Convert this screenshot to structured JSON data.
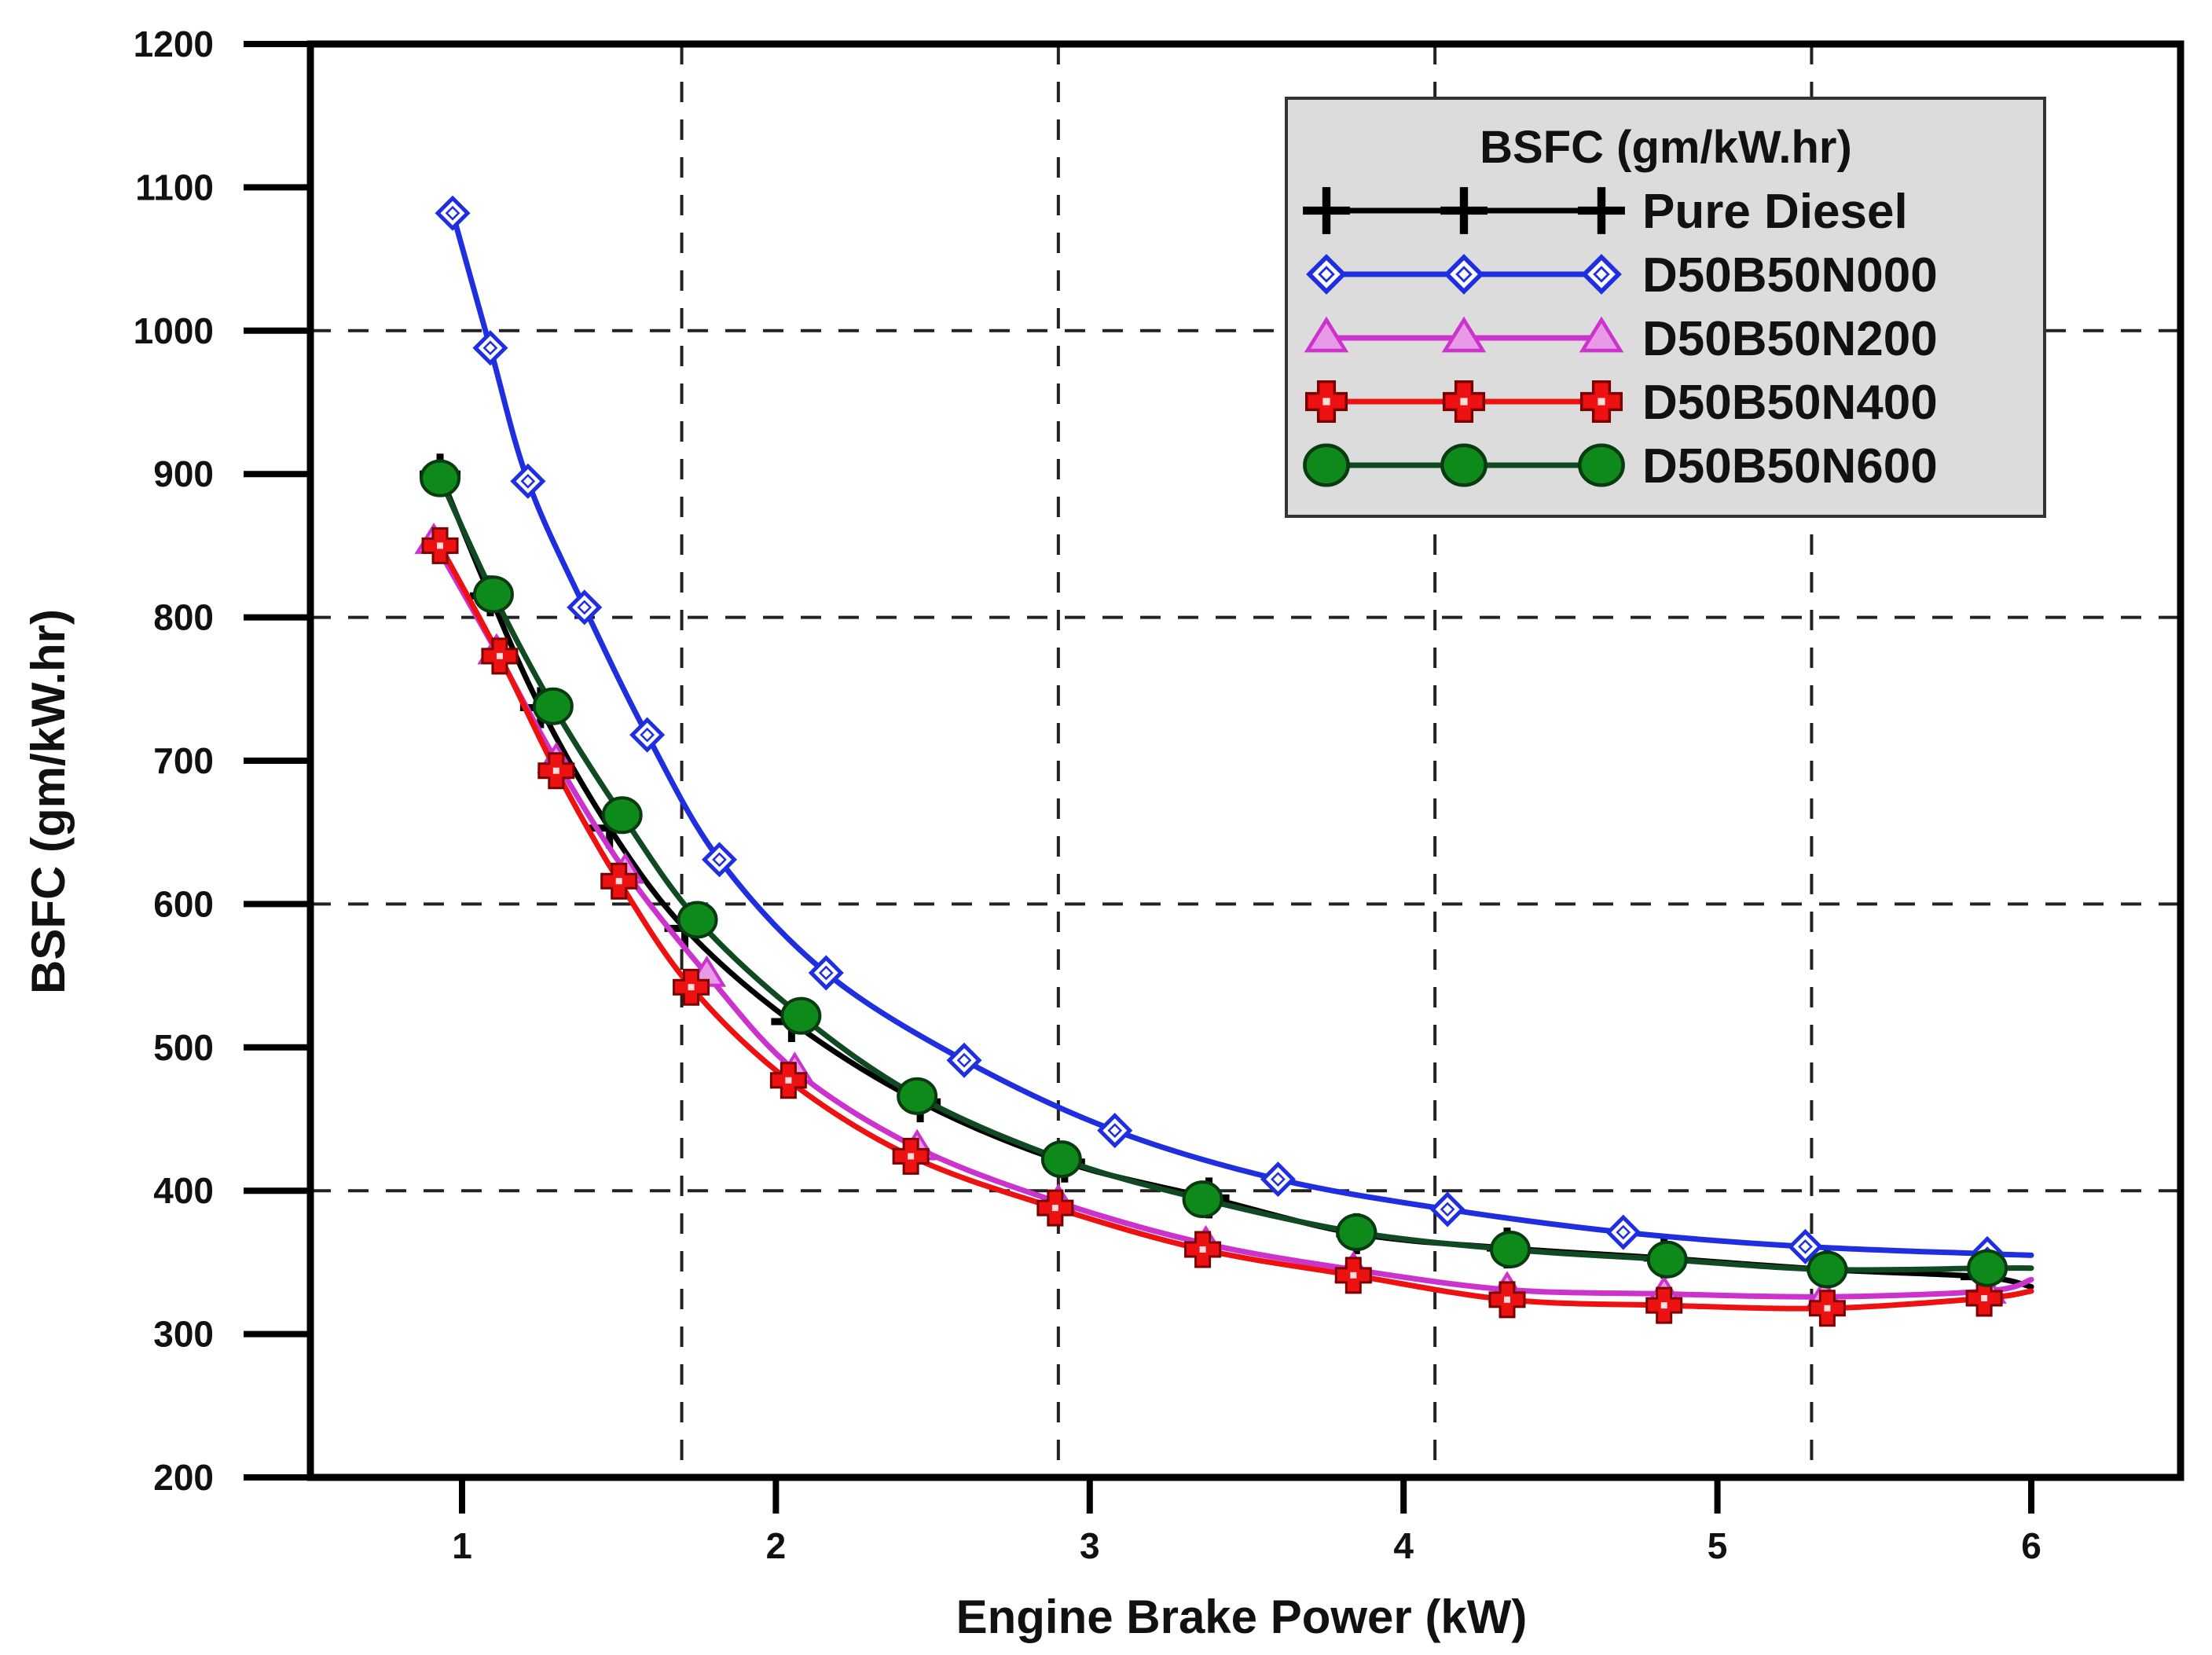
{
  "chart_data": {
    "type": "line",
    "title": "",
    "xlabel": "Engine Brake Power (kW)",
    "ylabel": "BSFC (gm/kW.hr)",
    "xlim": [
      0.5,
      6.5
    ],
    "ylim": [
      200,
      1200
    ],
    "x_ticks": [
      1,
      2,
      3,
      4,
      5,
      6
    ],
    "y_ticks": [
      200,
      300,
      400,
      500,
      600,
      700,
      800,
      900,
      1000,
      1100,
      1200
    ],
    "v_grid_x": [
      1.7,
      2.9,
      4.1,
      5.3
    ],
    "h_grid_y": [
      400,
      600,
      800,
      1000
    ],
    "grid": "dashed",
    "legend": {
      "title": "BSFC (gm/kW.hr)",
      "position": "top-right"
    },
    "series": [
      {
        "name": "Pure Diesel",
        "color": "#000000",
        "marker": "plus",
        "x": [
          0.93,
          1.09,
          1.25,
          1.47,
          1.71,
          2.05,
          2.46,
          2.92,
          3.38,
          3.85,
          4.33,
          4.83,
          5.35,
          5.84
        ],
        "y": [
          900,
          815,
          737,
          653,
          583,
          518,
          462,
          420,
          395,
          370,
          360,
          353,
          345,
          340
        ],
        "curve_end": [
          6.0,
          333
        ]
      },
      {
        "name": "D50B50N000",
        "color": "#1f2fe0",
        "marker": "diamond",
        "x": [
          0.97,
          1.09,
          1.21,
          1.39,
          1.59,
          1.82,
          2.16,
          2.6,
          3.08,
          3.6,
          4.14,
          4.7,
          5.28,
          5.86
        ],
        "y": [
          1082,
          988,
          895,
          807,
          718,
          631,
          552,
          491,
          442,
          408,
          387,
          371,
          361,
          356
        ],
        "curve_end": [
          6.0,
          355
        ]
      },
      {
        "name": "D50B50N200",
        "color": "#cc33cc",
        "marker": "triangle",
        "x": [
          0.91,
          1.11,
          1.3,
          1.52,
          1.78,
          2.06,
          2.45,
          2.9,
          3.37,
          3.84,
          4.33,
          4.83,
          5.34,
          5.86
        ],
        "y": [
          853,
          776,
          700,
          623,
          551,
          484,
          430,
          392,
          363,
          345,
          331,
          328,
          326,
          330
        ],
        "curve_end": [
          6.0,
          338
        ]
      },
      {
        "name": "D50B50N400",
        "color": "#ee1111",
        "marker": "cross",
        "x": [
          0.93,
          1.12,
          1.3,
          1.5,
          1.73,
          2.04,
          2.43,
          2.89,
          3.36,
          3.84,
          4.33,
          4.83,
          5.35,
          5.85
        ],
        "y": [
          850,
          773,
          693,
          616,
          542,
          477,
          424,
          388,
          359,
          341,
          324,
          320,
          318,
          325
        ],
        "curve_end": [
          6.0,
          330
        ]
      },
      {
        "name": "D50B50N600",
        "color": "#0e8a1a",
        "line_color": "#0f4a22",
        "marker": "circle",
        "x": [
          0.93,
          1.1,
          1.29,
          1.51,
          1.75,
          2.08,
          2.45,
          2.91,
          3.36,
          3.85,
          4.34,
          4.84,
          5.35,
          5.86
        ],
        "y": [
          897,
          816,
          738,
          662,
          589,
          522,
          466,
          422,
          394,
          371,
          359,
          352,
          345,
          346
        ],
        "curve_end": [
          6.0,
          346
        ]
      }
    ]
  }
}
